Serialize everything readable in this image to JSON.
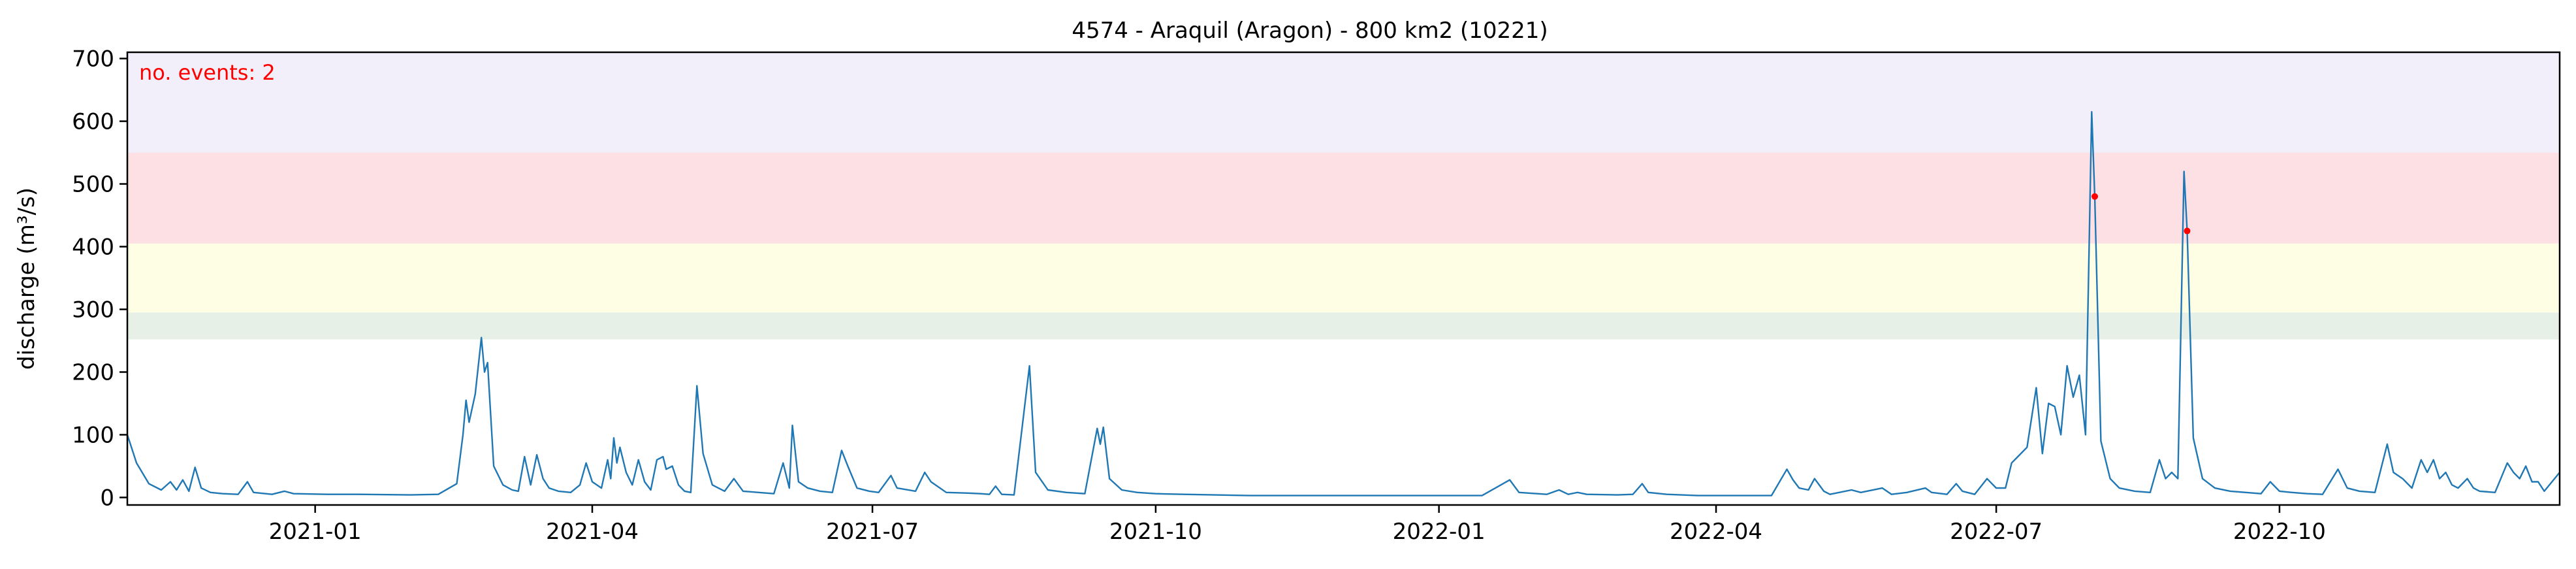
{
  "chart_data": {
    "type": "line",
    "title": "4574 - Araquil (Aragon) - 800 km2 (10221)",
    "xlabel": "",
    "ylabel": "discharge (m³/s)",
    "ylim": [
      -12,
      710
    ],
    "xlim": [
      "2020-11-01",
      "2022-12-31"
    ],
    "grid": false,
    "legend": "none",
    "y_ticks": [
      0,
      100,
      200,
      300,
      400,
      500,
      600,
      700
    ],
    "x_ticks": [
      "2021-01",
      "2021-04",
      "2021-07",
      "2021-10",
      "2022-01",
      "2022-04",
      "2022-07",
      "2022-10"
    ],
    "annotation": "no. events: 2",
    "bands": [
      {
        "y0": 252,
        "y1": 295,
        "color": "#e6f0e6"
      },
      {
        "y0": 295,
        "y1": 405,
        "color": "#fefee4"
      },
      {
        "y0": 405,
        "y1": 550,
        "color": "#fde0e4"
      },
      {
        "y0": 550,
        "y1": 710,
        "color": "#f2effa"
      }
    ],
    "colors": {
      "line": "#1f77b4",
      "events": "#ff0000",
      "annotation": "#ff0000"
    },
    "series": [
      {
        "values": [
          [
            "2020-11-01",
            100
          ],
          [
            "2020-11-04",
            55
          ],
          [
            "2020-11-08",
            22
          ],
          [
            "2020-11-12",
            12
          ],
          [
            "2020-11-15",
            25
          ],
          [
            "2020-11-17",
            12
          ],
          [
            "2020-11-19",
            28
          ],
          [
            "2020-11-21",
            10
          ],
          [
            "2020-11-23",
            48
          ],
          [
            "2020-11-25",
            15
          ],
          [
            "2020-11-28",
            8
          ],
          [
            "2020-12-02",
            6
          ],
          [
            "2020-12-07",
            5
          ],
          [
            "2020-12-10",
            25
          ],
          [
            "2020-12-12",
            8
          ],
          [
            "2020-12-18",
            5
          ],
          [
            "2020-12-22",
            10
          ],
          [
            "2020-12-25",
            6
          ],
          [
            "2021-01-05",
            5
          ],
          [
            "2021-01-15",
            5
          ],
          [
            "2021-02-01",
            4
          ],
          [
            "2021-02-10",
            5
          ],
          [
            "2021-02-16",
            22
          ],
          [
            "2021-02-18",
            100
          ],
          [
            "2021-02-19",
            155
          ],
          [
            "2021-02-20",
            120
          ],
          [
            "2021-02-22",
            165
          ],
          [
            "2021-02-24",
            255
          ],
          [
            "2021-02-25",
            200
          ],
          [
            "2021-02-26",
            215
          ],
          [
            "2021-02-28",
            50
          ],
          [
            "2021-03-03",
            20
          ],
          [
            "2021-03-06",
            12
          ],
          [
            "2021-03-08",
            10
          ],
          [
            "2021-03-10",
            65
          ],
          [
            "2021-03-12",
            20
          ],
          [
            "2021-03-14",
            68
          ],
          [
            "2021-03-16",
            30
          ],
          [
            "2021-03-18",
            15
          ],
          [
            "2021-03-21",
            10
          ],
          [
            "2021-03-25",
            8
          ],
          [
            "2021-03-28",
            20
          ],
          [
            "2021-03-30",
            55
          ],
          [
            "2021-04-01",
            25
          ],
          [
            "2021-04-04",
            15
          ],
          [
            "2021-04-06",
            60
          ],
          [
            "2021-04-07",
            30
          ],
          [
            "2021-04-08",
            95
          ],
          [
            "2021-04-09",
            55
          ],
          [
            "2021-04-10",
            80
          ],
          [
            "2021-04-12",
            40
          ],
          [
            "2021-04-14",
            20
          ],
          [
            "2021-04-16",
            60
          ],
          [
            "2021-04-18",
            25
          ],
          [
            "2021-04-20",
            12
          ],
          [
            "2021-04-22",
            60
          ],
          [
            "2021-04-24",
            65
          ],
          [
            "2021-04-25",
            45
          ],
          [
            "2021-04-27",
            50
          ],
          [
            "2021-04-29",
            20
          ],
          [
            "2021-05-01",
            10
          ],
          [
            "2021-05-03",
            8
          ],
          [
            "2021-05-05",
            178
          ],
          [
            "2021-05-07",
            70
          ],
          [
            "2021-05-10",
            20
          ],
          [
            "2021-05-14",
            10
          ],
          [
            "2021-05-17",
            30
          ],
          [
            "2021-05-20",
            10
          ],
          [
            "2021-05-25",
            8
          ],
          [
            "2021-05-30",
            6
          ],
          [
            "2021-06-02",
            55
          ],
          [
            "2021-06-04",
            15
          ],
          [
            "2021-06-05",
            115
          ],
          [
            "2021-06-07",
            25
          ],
          [
            "2021-06-10",
            15
          ],
          [
            "2021-06-14",
            10
          ],
          [
            "2021-06-18",
            8
          ],
          [
            "2021-06-21",
            75
          ],
          [
            "2021-06-23",
            50
          ],
          [
            "2021-06-26",
            15
          ],
          [
            "2021-06-30",
            10
          ],
          [
            "2021-07-03",
            8
          ],
          [
            "2021-07-07",
            35
          ],
          [
            "2021-07-09",
            15
          ],
          [
            "2021-07-15",
            10
          ],
          [
            "2021-07-18",
            40
          ],
          [
            "2021-07-20",
            25
          ],
          [
            "2021-07-25",
            8
          ],
          [
            "2021-08-01",
            7
          ],
          [
            "2021-08-05",
            6
          ],
          [
            "2021-08-08",
            5
          ],
          [
            "2021-08-10",
            18
          ],
          [
            "2021-08-12",
            5
          ],
          [
            "2021-08-16",
            4
          ],
          [
            "2021-08-21",
            210
          ],
          [
            "2021-08-23",
            40
          ],
          [
            "2021-08-27",
            12
          ],
          [
            "2021-09-02",
            8
          ],
          [
            "2021-09-08",
            6
          ],
          [
            "2021-09-12",
            110
          ],
          [
            "2021-09-13",
            85
          ],
          [
            "2021-09-14",
            112
          ],
          [
            "2021-09-16",
            30
          ],
          [
            "2021-09-20",
            12
          ],
          [
            "2021-09-25",
            8
          ],
          [
            "2021-10-01",
            6
          ],
          [
            "2021-10-10",
            5
          ],
          [
            "2021-10-20",
            4
          ],
          [
            "2021-11-01",
            3
          ],
          [
            "2021-11-15",
            3
          ],
          [
            "2021-12-05",
            3
          ],
          [
            "2021-12-20",
            3
          ],
          [
            "2022-01-05",
            3
          ],
          [
            "2022-01-15",
            3
          ],
          [
            "2022-01-24",
            28
          ],
          [
            "2022-01-27",
            8
          ],
          [
            "2022-02-05",
            5
          ],
          [
            "2022-02-09",
            12
          ],
          [
            "2022-02-12",
            5
          ],
          [
            "2022-02-15",
            8
          ],
          [
            "2022-02-18",
            5
          ],
          [
            "2022-02-28",
            4
          ],
          [
            "2022-03-05",
            5
          ],
          [
            "2022-03-08",
            22
          ],
          [
            "2022-03-10",
            8
          ],
          [
            "2022-03-16",
            5
          ],
          [
            "2022-03-26",
            3
          ],
          [
            "2022-04-05",
            3
          ],
          [
            "2022-04-19",
            3
          ],
          [
            "2022-04-24",
            45
          ],
          [
            "2022-04-26",
            28
          ],
          [
            "2022-04-28",
            15
          ],
          [
            "2022-05-01",
            12
          ],
          [
            "2022-05-03",
            30
          ],
          [
            "2022-05-06",
            10
          ],
          [
            "2022-05-08",
            5
          ],
          [
            "2022-05-15",
            12
          ],
          [
            "2022-05-18",
            8
          ],
          [
            "2022-05-25",
            15
          ],
          [
            "2022-05-28",
            5
          ],
          [
            "2022-06-02",
            8
          ],
          [
            "2022-06-08",
            15
          ],
          [
            "2022-06-10",
            8
          ],
          [
            "2022-06-15",
            5
          ],
          [
            "2022-06-18",
            22
          ],
          [
            "2022-06-20",
            10
          ],
          [
            "2022-06-24",
            5
          ],
          [
            "2022-06-28",
            30
          ],
          [
            "2022-07-01",
            15
          ],
          [
            "2022-07-04",
            15
          ],
          [
            "2022-07-06",
            55
          ],
          [
            "2022-07-08",
            65
          ],
          [
            "2022-07-11",
            80
          ],
          [
            "2022-07-14",
            175
          ],
          [
            "2022-07-16",
            70
          ],
          [
            "2022-07-18",
            150
          ],
          [
            "2022-07-20",
            145
          ],
          [
            "2022-07-22",
            100
          ],
          [
            "2022-07-24",
            210
          ],
          [
            "2022-07-26",
            160
          ],
          [
            "2022-07-28",
            195
          ],
          [
            "2022-07-30",
            100
          ],
          [
            "2022-08-01",
            615
          ],
          [
            "2022-08-02",
            480
          ],
          [
            "2022-08-04",
            90
          ],
          [
            "2022-08-07",
            30
          ],
          [
            "2022-08-10",
            15
          ],
          [
            "2022-08-15",
            10
          ],
          [
            "2022-08-20",
            8
          ],
          [
            "2022-08-23",
            60
          ],
          [
            "2022-08-25",
            30
          ],
          [
            "2022-08-27",
            40
          ],
          [
            "2022-08-29",
            30
          ],
          [
            "2022-08-31",
            520
          ],
          [
            "2022-09-01",
            425
          ],
          [
            "2022-09-03",
            95
          ],
          [
            "2022-09-06",
            30
          ],
          [
            "2022-09-10",
            15
          ],
          [
            "2022-09-15",
            10
          ],
          [
            "2022-09-20",
            8
          ],
          [
            "2022-09-25",
            6
          ],
          [
            "2022-09-28",
            25
          ],
          [
            "2022-10-01",
            10
          ],
          [
            "2022-10-05",
            8
          ],
          [
            "2022-10-10",
            6
          ],
          [
            "2022-10-15",
            5
          ],
          [
            "2022-10-20",
            45
          ],
          [
            "2022-10-23",
            15
          ],
          [
            "2022-10-27",
            10
          ],
          [
            "2022-11-01",
            8
          ],
          [
            "2022-11-05",
            85
          ],
          [
            "2022-11-07",
            40
          ],
          [
            "2022-11-10",
            30
          ],
          [
            "2022-11-13",
            15
          ],
          [
            "2022-11-16",
            60
          ],
          [
            "2022-11-18",
            40
          ],
          [
            "2022-11-20",
            60
          ],
          [
            "2022-11-22",
            30
          ],
          [
            "2022-11-24",
            40
          ],
          [
            "2022-11-26",
            20
          ],
          [
            "2022-11-28",
            15
          ],
          [
            "2022-12-01",
            30
          ],
          [
            "2022-12-03",
            15
          ],
          [
            "2022-12-05",
            10
          ],
          [
            "2022-12-10",
            8
          ],
          [
            "2022-12-14",
            55
          ],
          [
            "2022-12-16",
            40
          ],
          [
            "2022-12-18",
            30
          ],
          [
            "2022-12-20",
            50
          ],
          [
            "2022-12-22",
            25
          ],
          [
            "2022-12-24",
            25
          ],
          [
            "2022-12-26",
            10
          ],
          [
            "2022-12-31",
            40
          ]
        ]
      }
    ],
    "events": [
      [
        "2022-08-02",
        480
      ],
      [
        "2022-09-01",
        425
      ]
    ]
  }
}
